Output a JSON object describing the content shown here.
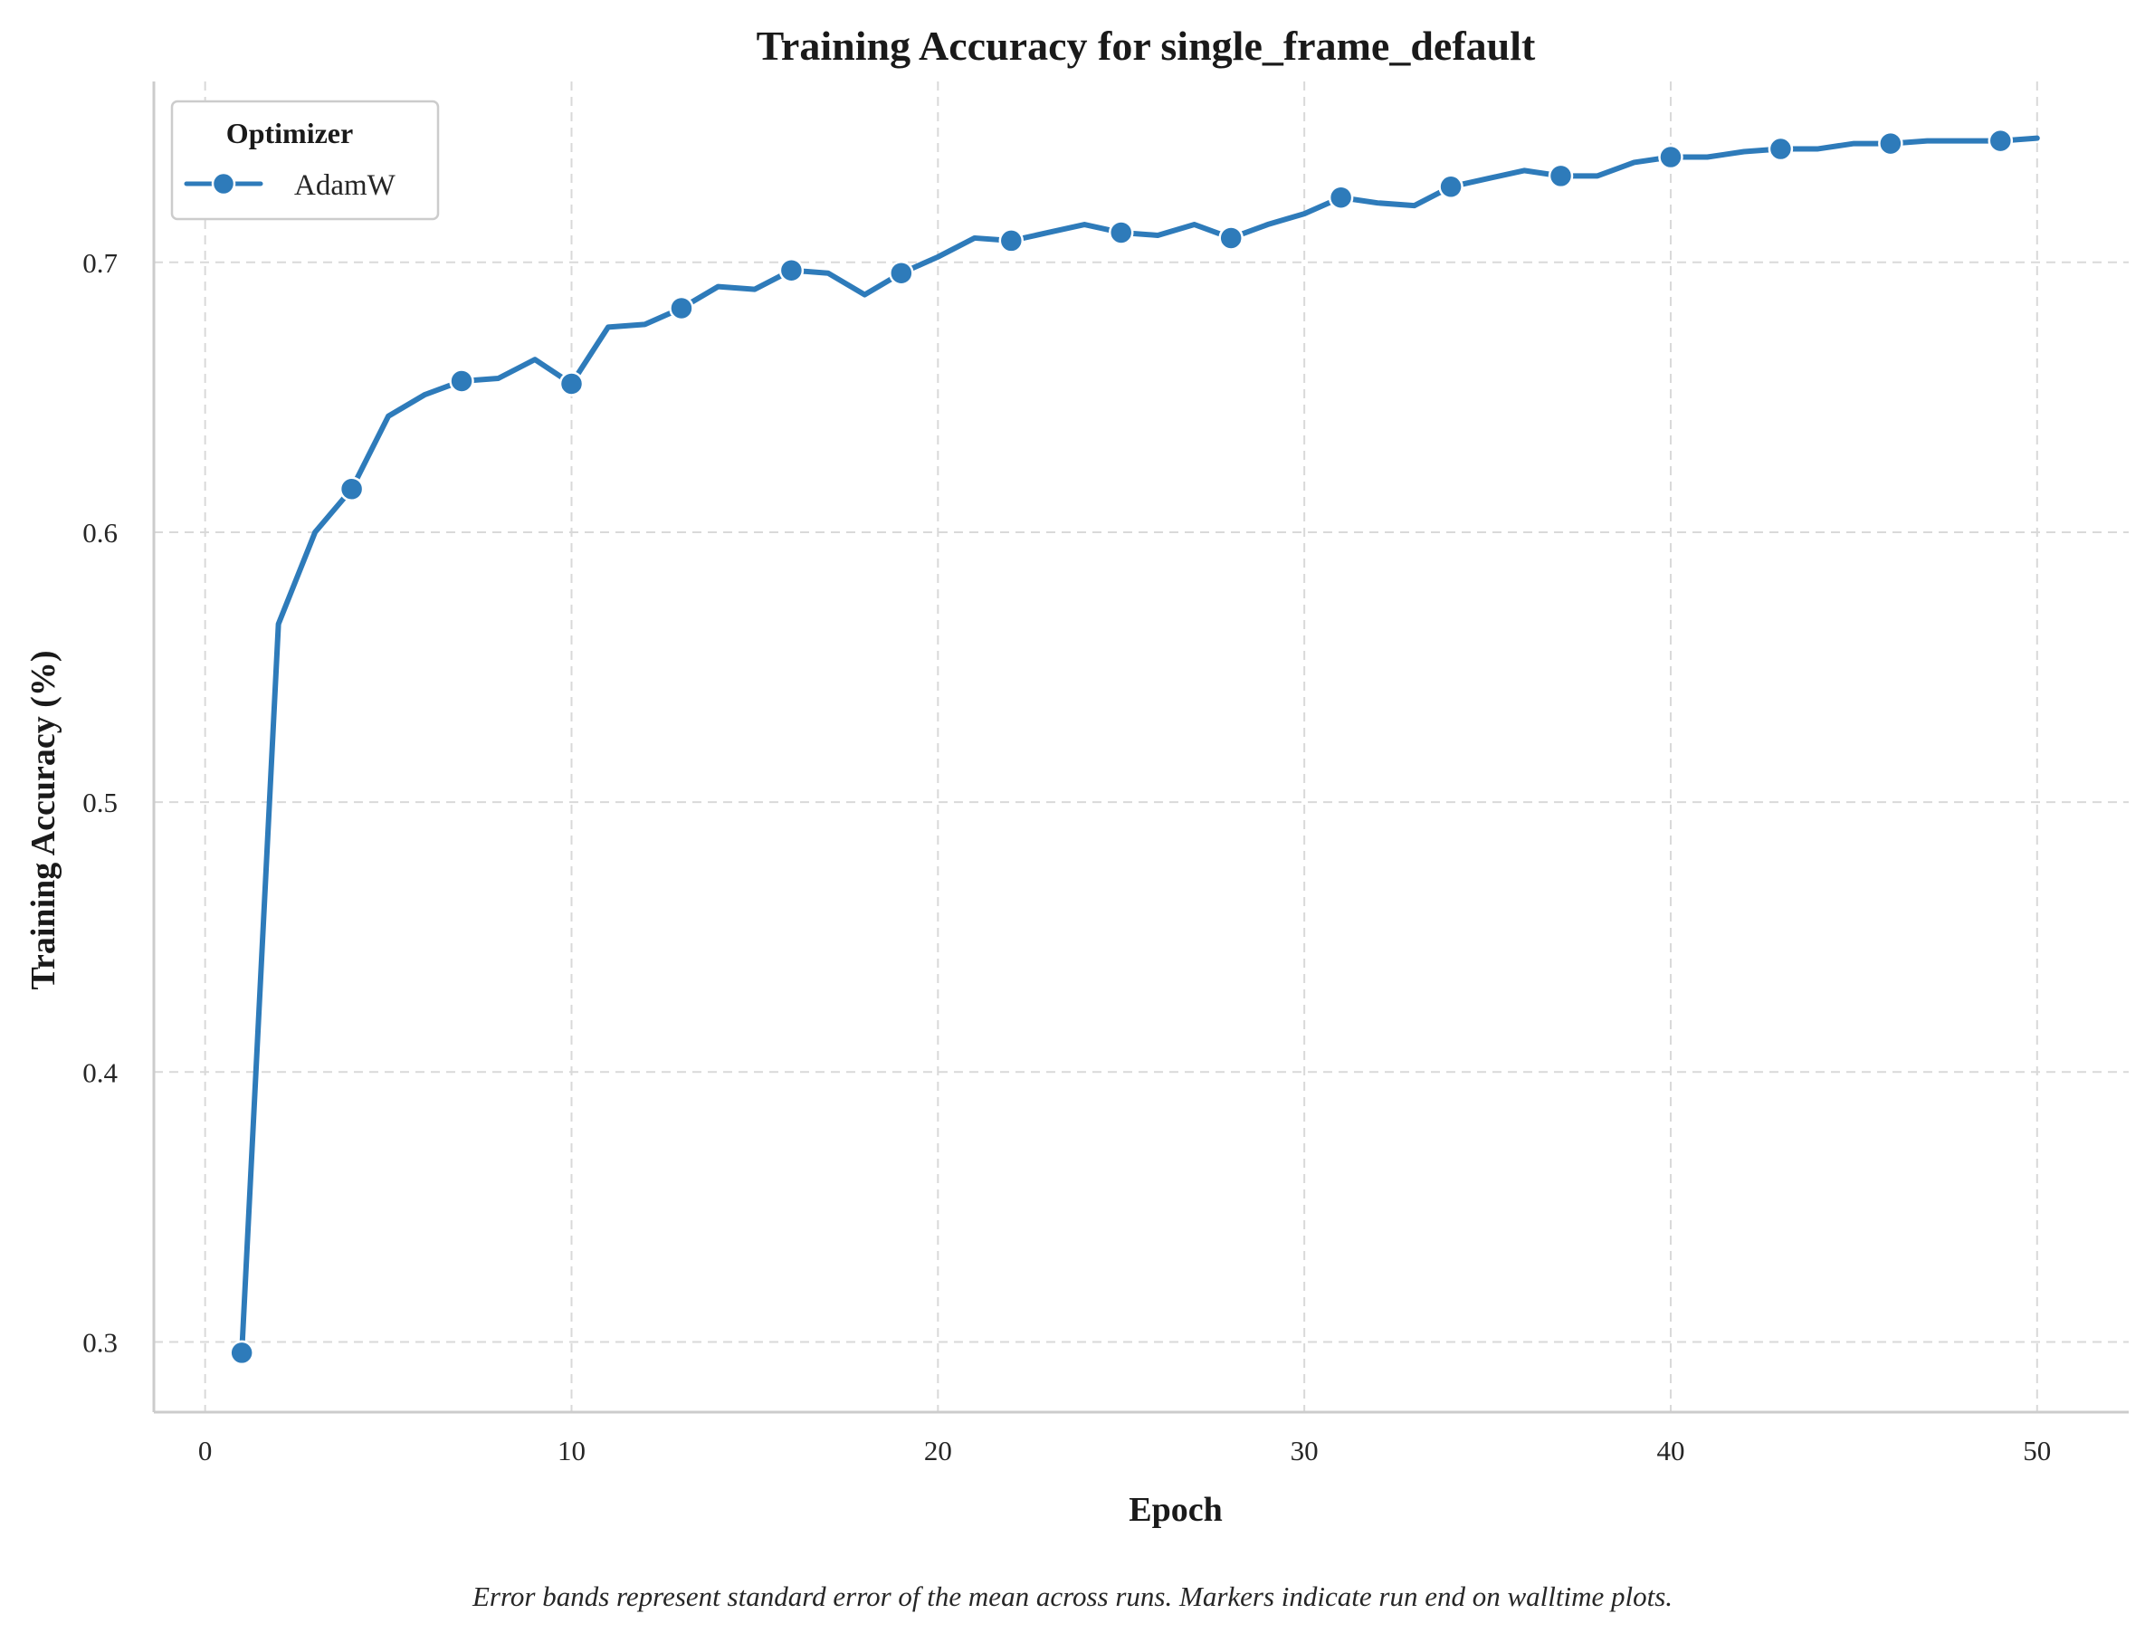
{
  "chart_data": {
    "type": "line",
    "title": "Training Accuracy for single_frame_default",
    "xlabel": "Epoch",
    "ylabel": "Training Accuracy (%)",
    "xlim": [
      -1.4,
      52.5
    ],
    "ylim": [
      0.274,
      0.767
    ],
    "xticks": [
      0,
      10,
      20,
      30,
      40,
      50
    ],
    "yticks": [
      0.3,
      0.4,
      0.5,
      0.6,
      0.7
    ],
    "xtick_labels": [
      "0",
      "10",
      "20",
      "30",
      "40",
      "50"
    ],
    "ytick_labels": [
      "0.3",
      "0.4",
      "0.5",
      "0.6",
      "0.7"
    ],
    "grid": true,
    "legend": {
      "title": "Optimizer",
      "placement": "top-left"
    },
    "marker_every": 3,
    "series": [
      {
        "name": "AdamW",
        "color": "#2e7bba",
        "x": [
          1,
          2,
          3,
          4,
          5,
          6,
          7,
          8,
          9,
          10,
          11,
          12,
          13,
          14,
          15,
          16,
          17,
          18,
          19,
          20,
          21,
          22,
          23,
          24,
          25,
          26,
          27,
          28,
          29,
          30,
          31,
          32,
          33,
          34,
          35,
          36,
          37,
          38,
          39,
          40,
          41,
          42,
          43,
          44,
          45,
          46,
          47,
          48,
          49,
          50
        ],
        "values": [
          0.296,
          0.566,
          0.6,
          0.616,
          0.643,
          0.651,
          0.656,
          0.657,
          0.664,
          0.655,
          0.676,
          0.677,
          0.683,
          0.691,
          0.69,
          0.697,
          0.696,
          0.688,
          0.696,
          0.702,
          0.709,
          0.708,
          0.711,
          0.714,
          0.711,
          0.71,
          0.714,
          0.709,
          0.714,
          0.718,
          0.724,
          0.722,
          0.721,
          0.728,
          0.731,
          0.734,
          0.732,
          0.732,
          0.737,
          0.739,
          0.739,
          0.741,
          0.742,
          0.742,
          0.744,
          0.744,
          0.745,
          0.745,
          0.745,
          0.746
        ]
      }
    ]
  },
  "caption": "Error bands represent standard error of the mean across runs. Markers indicate run end on walltime plots."
}
